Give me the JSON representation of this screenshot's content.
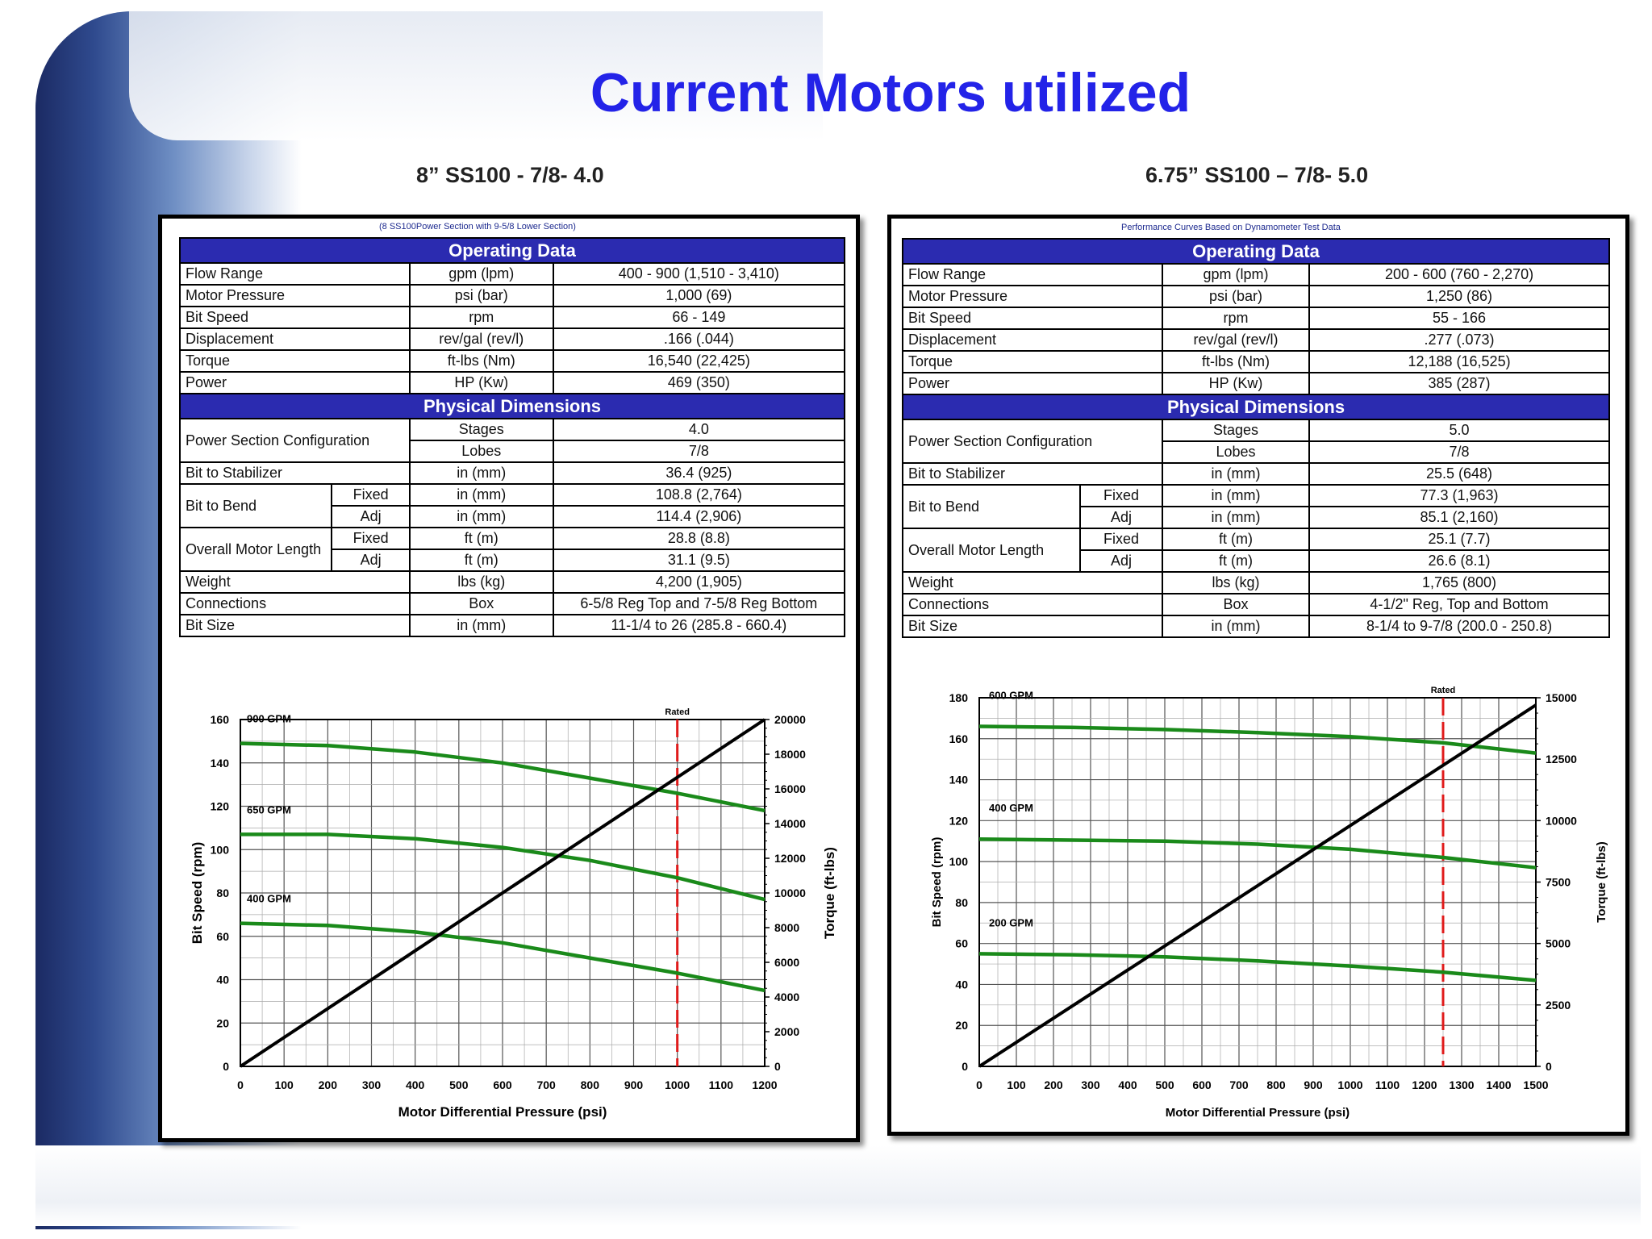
{
  "title": "Current Motors utilized",
  "motors": [
    {
      "name": "8” SS100 - 7/8- 4.0",
      "note": "(8 SS100Power Section with 9-5/8 Lower Section)",
      "operating_header": "Operating Data",
      "operating": [
        [
          "Flow Range",
          "gpm (lpm)",
          "400 - 900 (1,510 - 3,410)"
        ],
        [
          "Motor Pressure",
          "psi (bar)",
          "1,000 (69)"
        ],
        [
          "Bit Speed",
          "rpm",
          "66 - 149"
        ],
        [
          "Displacement",
          "rev/gal (rev/l)",
          ".166 (.044)"
        ],
        [
          "Torque",
          "ft-lbs (Nm)",
          "16,540 (22,425)"
        ],
        [
          "Power",
          "HP (Kw)",
          "469 (350)"
        ]
      ],
      "physical_header": "Physical Dimensions",
      "power_section": {
        "label": "Power Section Configuration",
        "stages_label": "Stages",
        "stages": "4.0",
        "lobes_label": "Lobes",
        "lobes": "7/8"
      },
      "bit_to_stabilizer": [
        "Bit to Stabilizer",
        "in (mm)",
        "36.4 (925)"
      ],
      "bit_to_bend": {
        "label": "Bit to Bend",
        "fixed_label": "Fixed",
        "fixed_unit": "in (mm)",
        "fixed": "108.8 (2,764)",
        "adj_label": "Adj",
        "adj_unit": "in (mm)",
        "adj": "114.4 (2,906)"
      },
      "motor_length": {
        "label": "Overall Motor Length",
        "fixed_label": "Fixed",
        "fixed_unit": "ft (m)",
        "fixed": "28.8 (8.8)",
        "adj_label": "Adj",
        "adj_unit": "ft (m)",
        "adj": "31.1 (9.5)"
      },
      "rows_end": [
        [
          "Weight",
          "lbs (kg)",
          "4,200 (1,905)"
        ],
        [
          "Connections",
          "Box",
          "6-5/8 Reg Top and 7-5/8 Reg Bottom"
        ],
        [
          "Bit Size",
          "in (mm)",
          "11-1/4 to 26 (285.8 - 660.4)"
        ]
      ]
    },
    {
      "name": "6.75” SS100 – 7/8- 5.0",
      "note": "Performance Curves Based on Dynamometer Test Data",
      "operating_header": "Operating Data",
      "operating": [
        [
          "Flow Range",
          "gpm (lpm)",
          "200 - 600 (760 - 2,270)"
        ],
        [
          "Motor Pressure",
          "psi (bar)",
          "1,250 (86)"
        ],
        [
          "Bit Speed",
          "rpm",
          "55 - 166"
        ],
        [
          "Displacement",
          "rev/gal (rev/l)",
          ".277 (.073)"
        ],
        [
          "Torque",
          "ft-lbs (Nm)",
          "12,188 (16,525)"
        ],
        [
          "Power",
          "HP (Kw)",
          "385 (287)"
        ]
      ],
      "physical_header": "Physical Dimensions",
      "power_section": {
        "label": "Power Section Configuration",
        "stages_label": "Stages",
        "stages": "5.0",
        "lobes_label": "Lobes",
        "lobes": "7/8"
      },
      "bit_to_stabilizer": [
        "Bit to Stabilizer",
        "in (mm)",
        "25.5 (648)"
      ],
      "bit_to_bend": {
        "label": "Bit to Bend",
        "fixed_label": "Fixed",
        "fixed_unit": "in (mm)",
        "fixed": "77.3 (1,963)",
        "adj_label": "Adj",
        "adj_unit": "in (mm)",
        "adj": "85.1 (2,160)"
      },
      "motor_length": {
        "label": "Overall Motor Length",
        "fixed_label": "Fixed",
        "fixed_unit": "ft (m)",
        "fixed": "25.1 (7.7)",
        "adj_label": "Adj",
        "adj_unit": "ft (m)",
        "adj": "26.6 (8.1)"
      },
      "rows_end": [
        [
          "Weight",
          "lbs (kg)",
          "1,765 (800)"
        ],
        [
          "Connections",
          "Box",
          "4-1/2\" Reg, Top and Bottom"
        ],
        [
          "Bit Size",
          "in (mm)",
          "8-1/4 to 9-7/8 (200.0 - 250.8)"
        ]
      ]
    }
  ],
  "chart_data": [
    {
      "type": "line",
      "xlabel": "Motor Differential Pressure (psi)",
      "ylabel": "Bit Speed (rpm)",
      "y2label": "Torque (ft-lbs)",
      "xlim": [
        0,
        1200
      ],
      "ylim": [
        0,
        160
      ],
      "y2lim": [
        0,
        20000
      ],
      "xticks": [
        0,
        100,
        200,
        300,
        400,
        500,
        600,
        700,
        800,
        900,
        1000,
        1100,
        1200
      ],
      "yticks": [
        0,
        20,
        40,
        60,
        80,
        100,
        120,
        140,
        160
      ],
      "y2ticks": [
        0,
        2000,
        4000,
        6000,
        8000,
        10000,
        12000,
        14000,
        16000,
        18000,
        20000
      ],
      "grid": true,
      "rated": {
        "label": "Rated",
        "x": 1000
      },
      "series": [
        {
          "name": "900 GPM",
          "axis": "left",
          "color": "#1a8a1a",
          "x": [
            0,
            200,
            400,
            600,
            800,
            1000,
            1200
          ],
          "y": [
            149,
            148,
            145,
            140,
            133,
            126,
            118
          ]
        },
        {
          "name": "650 GPM",
          "axis": "left",
          "color": "#1a8a1a",
          "x": [
            0,
            200,
            400,
            600,
            800,
            1000,
            1200
          ],
          "y": [
            107,
            107,
            105,
            101,
            95,
            87,
            77
          ]
        },
        {
          "name": "400 GPM",
          "axis": "left",
          "color": "#1a8a1a",
          "x": [
            0,
            200,
            400,
            600,
            800,
            1000,
            1200
          ],
          "y": [
            66,
            65,
            62,
            57,
            50,
            43,
            35
          ]
        },
        {
          "axis": "right",
          "color": "#000000",
          "x": [
            0,
            1200
          ],
          "y": [
            0,
            20000
          ]
        }
      ]
    },
    {
      "type": "line",
      "xlabel": "Motor Differential Pressure (psi)",
      "ylabel": "Bit Speed (rpm)",
      "y2label": "Torque (ft-lbs)",
      "xlim": [
        0,
        1500
      ],
      "ylim": [
        0,
        180
      ],
      "y2lim": [
        0,
        15000
      ],
      "xticks": [
        0,
        100,
        200,
        300,
        400,
        500,
        600,
        700,
        800,
        900,
        1000,
        1100,
        1200,
        1300,
        1400,
        1500
      ],
      "yticks": [
        0,
        20,
        40,
        60,
        80,
        100,
        120,
        140,
        160,
        180
      ],
      "y2ticks": [
        0,
        2500,
        5000,
        7500,
        10000,
        12500,
        15000
      ],
      "grid": true,
      "rated": {
        "label": "Rated",
        "x": 1250
      },
      "series": [
        {
          "name": "600 GPM",
          "axis": "left",
          "color": "#1a8a1a",
          "x": [
            0,
            250,
            500,
            750,
            1000,
            1250,
            1500
          ],
          "y": [
            166,
            165.5,
            164.5,
            163,
            161,
            158,
            153
          ]
        },
        {
          "name": "400 GPM",
          "axis": "left",
          "color": "#1a8a1a",
          "x": [
            0,
            250,
            500,
            750,
            1000,
            1250,
            1500
          ],
          "y": [
            111,
            110.5,
            110,
            108.5,
            106,
            102,
            97
          ]
        },
        {
          "name": "200 GPM",
          "axis": "left",
          "color": "#1a8a1a",
          "x": [
            0,
            250,
            500,
            750,
            1000,
            1250,
            1500
          ],
          "y": [
            55,
            54.5,
            53.5,
            51.5,
            49,
            46,
            42
          ]
        },
        {
          "axis": "right",
          "color": "#000000",
          "x": [
            0,
            1500
          ],
          "y": [
            0,
            14700
          ]
        }
      ]
    }
  ]
}
